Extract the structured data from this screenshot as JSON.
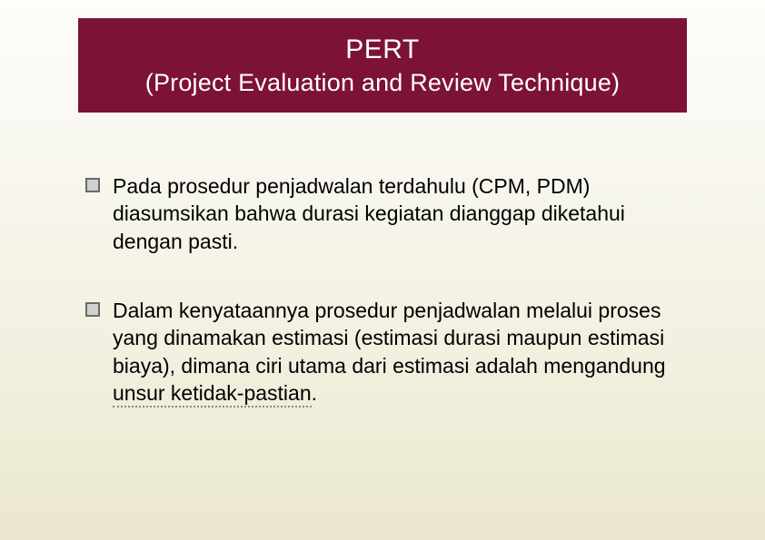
{
  "slide": {
    "background_gradient": [
      "#fdfdfb",
      "#f9f8f1",
      "#f4f2e4",
      "#efecd8",
      "#eae6ce"
    ],
    "title_box": {
      "background_color": "#7c1335",
      "text_color": "#ffffff",
      "title_main": "PERT",
      "title_sub": "(Project Evaluation and Review Technique)",
      "title_font": "Verdana",
      "title_main_fontsize": 30,
      "title_sub_fontsize": 27
    },
    "bullets": {
      "marker_border_color": "#6a6a6a",
      "marker_fill_color": "#d0d0d0",
      "text_color": "#000000",
      "text_fontsize": 23,
      "items": [
        {
          "text_plain": "Pada prosedur penjadwalan terdahulu (CPM, PDM) diasumsikan bahwa durasi kegiatan dianggap diketahui dengan pasti.",
          "underlined_phrase": null
        },
        {
          "text_plain": "Dalam kenyataannya prosedur penjadwalan melalui proses yang dinamakan estimasi (estimasi durasi maupun estimasi biaya), dimana ciri utama dari estimasi adalah mengandung unsur ketidak-pastian.",
          "text_before_underline": "Dalam kenyataannya prosedur penjadwalan melalui proses yang dinamakan estimasi (estimasi durasi maupun estimasi biaya), dimana ciri utama dari estimasi adalah mengandung ",
          "underlined_phrase": "unsur ketidak-pastian",
          "text_after_underline": "."
        }
      ]
    }
  }
}
